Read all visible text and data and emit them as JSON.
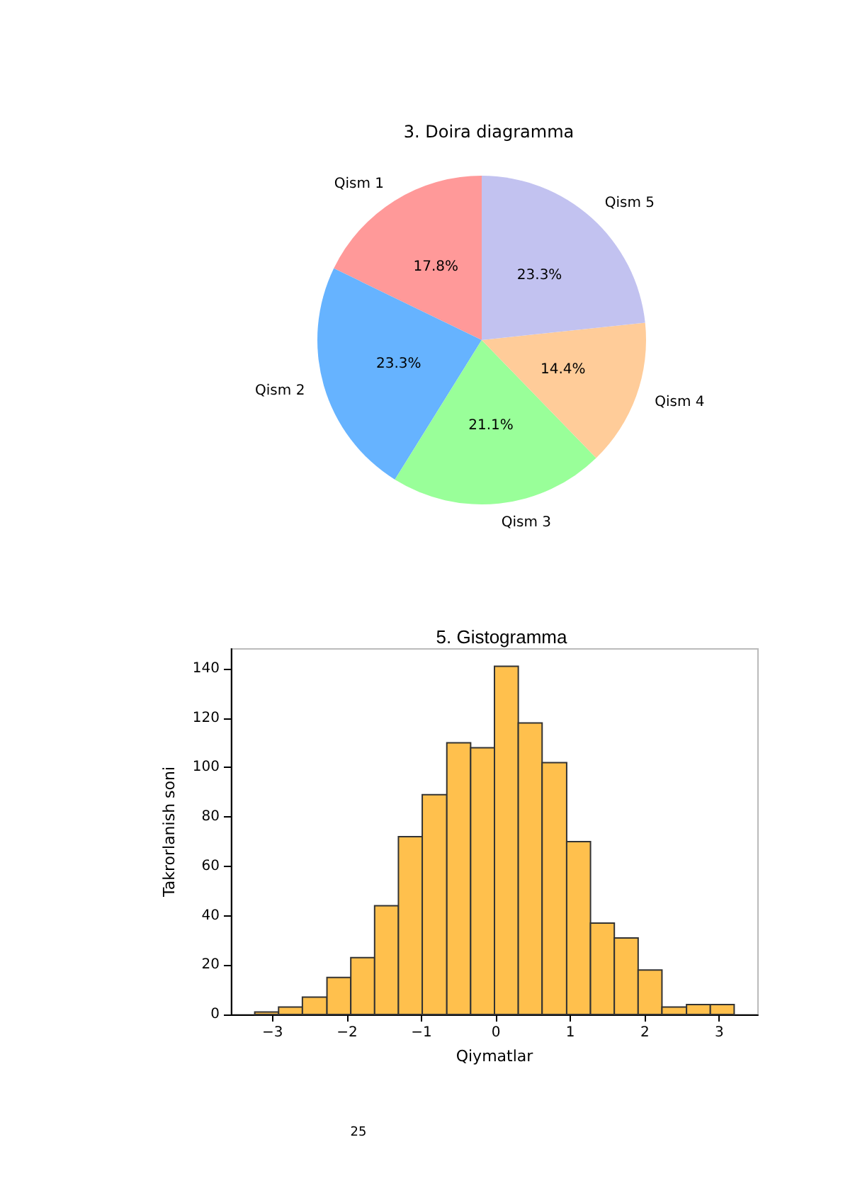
{
  "chart_data": [
    {
      "type": "pie",
      "title": "3. Doira diagramma",
      "categories": [
        "Qism 1",
        "Qism 2",
        "Qism 3",
        "Qism 4",
        "Qism 5"
      ],
      "values": [
        17.8,
        23.3,
        21.1,
        14.4,
        23.3
      ],
      "value_labels": [
        "17.8%",
        "23.3%",
        "21.1%",
        "14.4%",
        "23.3%"
      ],
      "colors": [
        "#ff9999",
        "#66b3ff",
        "#99ff99",
        "#ffcc99",
        "#c2c2f0"
      ],
      "legend": false
    },
    {
      "type": "histogram",
      "title": "5. Gistogramma",
      "xlabel": "Qiymatlar",
      "ylabel": "Takrorlanish soni",
      "bins": [
        -3.24,
        -2.92,
        -2.6,
        -2.27,
        -1.95,
        -1.63,
        -1.31,
        -0.99,
        -0.66,
        -0.34,
        -0.02,
        0.3,
        0.62,
        0.95,
        1.27,
        1.59,
        1.91,
        2.23,
        2.56,
        2.88,
        3.2
      ],
      "values": [
        1,
        3,
        7,
        15,
        23,
        44,
        72,
        89,
        110,
        108,
        141,
        118,
        102,
        70,
        37,
        31,
        18,
        3,
        4,
        4
      ],
      "color": "#ffc04d",
      "xlim": [
        -3.56,
        3.52
      ],
      "ylim": [
        0,
        148
      ],
      "xticks": [
        {
          "value": -3,
          "label": "−3"
        },
        {
          "value": -2,
          "label": "−2"
        },
        {
          "value": -1,
          "label": "−1"
        },
        0,
        1,
        2,
        3
      ],
      "yticks": [
        0,
        20,
        40,
        60,
        80,
        100,
        120,
        140
      ],
      "grid": false,
      "legend": false,
      "annotations": [
        "25"
      ]
    }
  ]
}
